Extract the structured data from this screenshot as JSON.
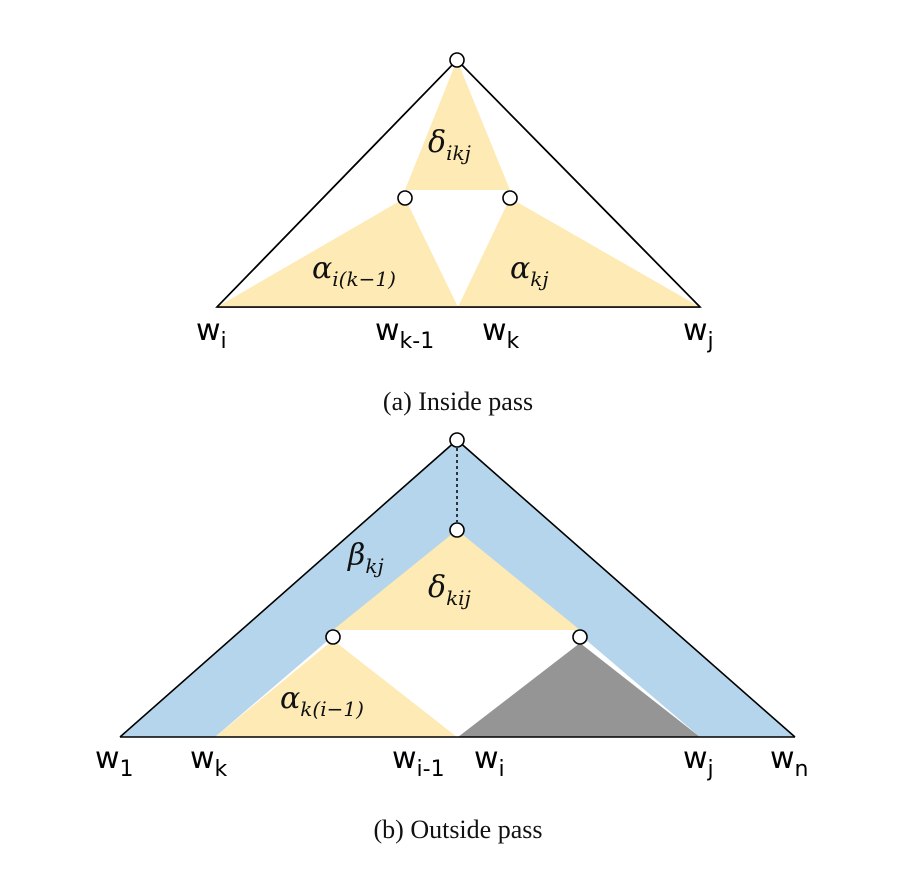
{
  "colors": {
    "yellow": "#fdeab4",
    "blue": "#b5d5ec",
    "gray": "#959595",
    "line": "#000000"
  },
  "inside": {
    "caption": "(a) Inside pass",
    "delta": {
      "sym": "δ",
      "sub": "ikj"
    },
    "alpha_left": {
      "sym": "α",
      "sub": "i(k−1)"
    },
    "alpha_right": {
      "sym": "α",
      "sub": "kj"
    },
    "words": [
      {
        "base": "w",
        "sub": "i"
      },
      {
        "base": "w",
        "sub": "k-1"
      },
      {
        "base": "w",
        "sub": "k"
      },
      {
        "base": "w",
        "sub": "j"
      }
    ]
  },
  "outside": {
    "caption": "(b) Outside pass",
    "beta": {
      "sym": "β",
      "sub": "kj"
    },
    "delta": {
      "sym": "δ",
      "sub": "kij"
    },
    "alpha": {
      "sym": "α",
      "sub": "k(i−1)"
    },
    "words": [
      {
        "base": "w",
        "sub": "1"
      },
      {
        "base": "w",
        "sub": "k"
      },
      {
        "base": "w",
        "sub": "i-1"
      },
      {
        "base": "w",
        "sub": "i"
      },
      {
        "base": "w",
        "sub": "j"
      },
      {
        "base": "w",
        "sub": "n"
      }
    ]
  }
}
